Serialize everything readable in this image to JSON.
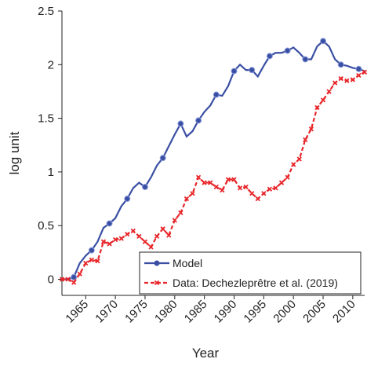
{
  "chart_data": {
    "type": "line",
    "xlabel": "Year",
    "ylabel": "log unit",
    "x": [
      1961,
      1962,
      1963,
      1964,
      1965,
      1966,
      1967,
      1968,
      1969,
      1970,
      1971,
      1972,
      1973,
      1974,
      1975,
      1976,
      1977,
      1978,
      1979,
      1980,
      1981,
      1982,
      1983,
      1984,
      1985,
      1986,
      1987,
      1988,
      1989,
      1990,
      1991,
      1992,
      1993,
      1994,
      1995,
      1996,
      1997,
      1998,
      1999,
      2000,
      2001,
      2002,
      2003,
      2004,
      2005,
      2006,
      2007,
      2008,
      2009,
      2010,
      2011,
      2012
    ],
    "series": [
      {
        "name": "Model",
        "color": "#3a4fa3",
        "marker": "circle",
        "dash": false,
        "values": [
          0,
          0,
          0.02,
          0.15,
          0.22,
          0.27,
          0.35,
          0.48,
          0.52,
          0.57,
          0.68,
          0.75,
          0.85,
          0.9,
          0.86,
          0.95,
          1.06,
          1.13,
          1.24,
          1.35,
          1.45,
          1.33,
          1.38,
          1.48,
          1.56,
          1.62,
          1.72,
          1.71,
          1.8,
          1.94,
          2.0,
          1.95,
          1.95,
          1.89,
          1.99,
          2.08,
          2.11,
          2.11,
          2.13,
          2.16,
          2.11,
          2.05,
          2.05,
          2.17,
          2.22,
          2.17,
          2.05,
          2.0,
          1.99,
          1.97,
          1.96,
          1.94
        ]
      },
      {
        "name": "Data: Dechezleprêtre et al. (2019)",
        "color": "#e8262a",
        "marker": "cross",
        "dash": true,
        "values": [
          0,
          0,
          -0.03,
          0.05,
          0.15,
          0.18,
          0.17,
          0.35,
          0.33,
          0.37,
          0.38,
          0.42,
          0.45,
          0.4,
          0.35,
          0.3,
          0.4,
          0.47,
          0.41,
          0.55,
          0.62,
          0.75,
          0.8,
          0.95,
          0.9,
          0.9,
          0.86,
          0.83,
          0.93,
          0.93,
          0.85,
          0.86,
          0.8,
          0.75,
          0.8,
          0.84,
          0.85,
          0.9,
          0.95,
          1.07,
          1.12,
          1.3,
          1.4,
          1.6,
          1.67,
          1.75,
          1.83,
          1.87,
          1.85,
          1.86,
          1.9,
          1.93
        ]
      }
    ],
    "xlim": [
      1961,
      2012
    ],
    "ylim": [
      -0.15,
      2.5
    ],
    "xticks": [
      1965,
      1970,
      1975,
      1980,
      1985,
      1990,
      1995,
      2000,
      2005,
      2010
    ],
    "yticks": [
      0,
      0.5,
      1,
      1.5,
      2,
      2.5
    ],
    "legend": "lower right"
  }
}
